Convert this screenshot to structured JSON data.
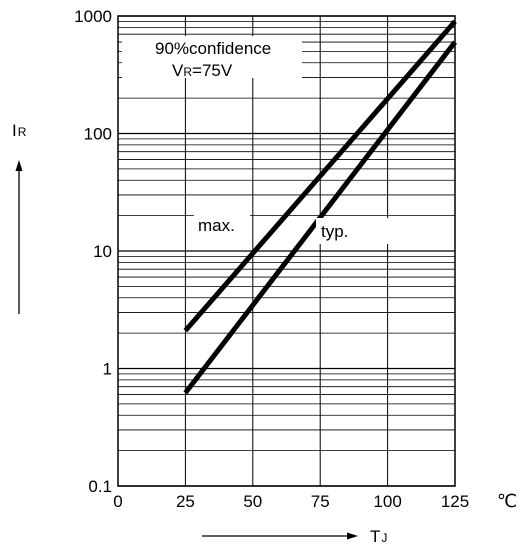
{
  "chart_data": {
    "type": "line",
    "title": "",
    "xlabel": "TJ",
    "xlabel_main": "T",
    "xlabel_sub": "J",
    "ylabel": "IR",
    "ylabel_main": "I",
    "ylabel_sub": "R",
    "x_unit": "℃",
    "xlim": [
      0,
      125
    ],
    "ylim": [
      0.1,
      1000
    ],
    "y_scale": "log",
    "grid": true,
    "x_ticks": [
      0,
      25,
      50,
      75,
      100,
      125
    ],
    "x_tick_labels": [
      "0",
      "25",
      "50",
      "75",
      "100",
      "125"
    ],
    "y_ticks": [
      0.1,
      1,
      10,
      100,
      1000
    ],
    "y_tick_labels": [
      "0.1",
      "1",
      "10",
      "100",
      "1000"
    ],
    "series": [
      {
        "name": "max.",
        "x": [
          25,
          125
        ],
        "y": [
          2.1,
          900
        ]
      },
      {
        "name": "typ.",
        "x": [
          25,
          125
        ],
        "y": [
          0.62,
          600
        ]
      }
    ],
    "annotations": {
      "confidence": "90%confidence",
      "vr_main": "V",
      "vr_sub": "R",
      "vr_value": "=75V"
    }
  }
}
